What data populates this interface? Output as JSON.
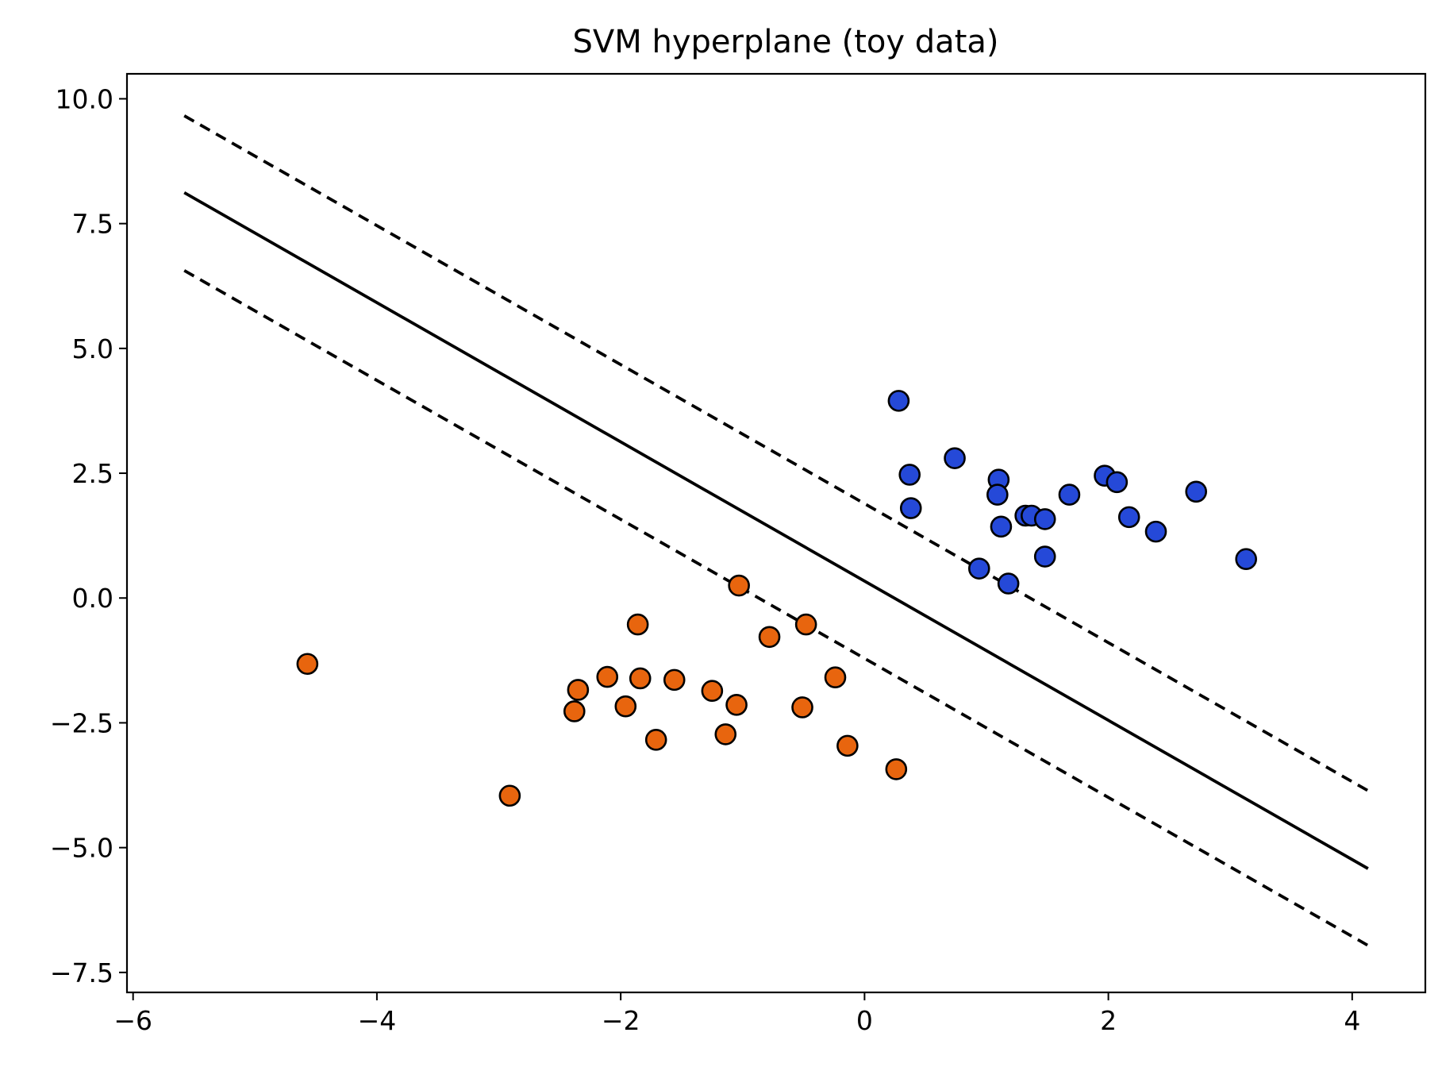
{
  "chart_data": {
    "type": "scatter",
    "title": "SVM hyperplane (toy data)",
    "xlabel": "",
    "ylabel": "",
    "xlim": [
      -6.05,
      4.6
    ],
    "ylim": [
      -7.9,
      10.5
    ],
    "xticks": [
      -6,
      -4,
      -2,
      0,
      2,
      4
    ],
    "xtick_labels": [
      "−6",
      "−4",
      "−2",
      "0",
      "2",
      "4"
    ],
    "yticks": [
      -7.5,
      -5.0,
      -2.5,
      0.0,
      2.5,
      5.0,
      7.5,
      10.0
    ],
    "ytick_labels": [
      "−7.5",
      "−5.0",
      "−2.5",
      "0.0",
      "2.5",
      "5.0",
      "7.5",
      "10.0"
    ],
    "grid": false,
    "series": [
      {
        "color": "#2549d8",
        "points": [
          [
            0.28,
            3.95
          ],
          [
            0.37,
            2.47
          ],
          [
            0.38,
            1.8
          ],
          [
            0.74,
            2.8
          ],
          [
            1.1,
            2.37
          ],
          [
            1.09,
            2.07
          ],
          [
            1.12,
            1.43
          ],
          [
            1.32,
            1.65
          ],
          [
            1.37,
            1.65
          ],
          [
            1.48,
            1.58
          ],
          [
            1.68,
            2.07
          ],
          [
            1.97,
            2.45
          ],
          [
            2.07,
            2.32
          ],
          [
            2.17,
            1.62
          ],
          [
            2.39,
            1.33
          ],
          [
            2.72,
            2.13
          ],
          [
            3.13,
            0.78
          ],
          [
            1.48,
            0.83
          ],
          [
            0.94,
            0.59
          ],
          [
            1.18,
            0.29
          ]
        ]
      },
      {
        "color": "#e8650e",
        "points": [
          [
            -4.57,
            -1.32
          ],
          [
            -2.91,
            -3.96
          ],
          [
            -2.38,
            -2.27
          ],
          [
            -2.35,
            -1.84
          ],
          [
            -2.11,
            -1.58
          ],
          [
            -1.96,
            -2.17
          ],
          [
            -1.86,
            -0.53
          ],
          [
            -1.84,
            -1.61
          ],
          [
            -1.71,
            -2.84
          ],
          [
            -1.56,
            -1.64
          ],
          [
            -1.25,
            -1.86
          ],
          [
            -1.14,
            -2.73
          ],
          [
            -1.05,
            -2.14
          ],
          [
            -1.03,
            0.25
          ],
          [
            -0.78,
            -0.78
          ],
          [
            -0.48,
            -0.53
          ],
          [
            -0.51,
            -2.19
          ],
          [
            -0.24,
            -1.59
          ],
          [
            -0.14,
            -2.96
          ],
          [
            0.26,
            -3.43
          ]
        ]
      }
    ],
    "lines": [
      {
        "style": "solid",
        "x": [
          -5.58,
          4.13
        ],
        "y": [
          8.12,
          -5.42
        ]
      },
      {
        "style": "dashed",
        "x": [
          -5.58,
          4.13
        ],
        "y": [
          9.66,
          -3.86
        ]
      },
      {
        "style": "dashed",
        "x": [
          -5.58,
          4.13
        ],
        "y": [
          6.56,
          -6.96
        ]
      }
    ]
  }
}
